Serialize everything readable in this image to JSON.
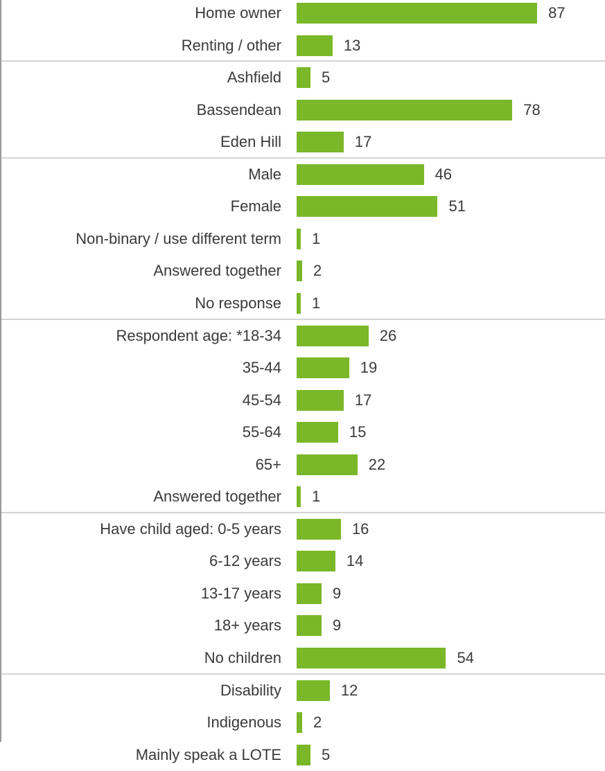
{
  "chart_data": {
    "type": "bar",
    "orientation": "horizontal",
    "bar_color": "#7ab829",
    "xlim": [
      0,
      100
    ],
    "groups": [
      {
        "rows": [
          {
            "label": "Home owner",
            "value": 87
          },
          {
            "label": "Renting / other",
            "value": 13
          }
        ]
      },
      {
        "rows": [
          {
            "label": "Ashfield",
            "value": 5
          },
          {
            "label": "Bassendean",
            "value": 78
          },
          {
            "label": "Eden Hill",
            "value": 17
          }
        ]
      },
      {
        "rows": [
          {
            "label": "Male",
            "value": 46
          },
          {
            "label": "Female",
            "value": 51
          },
          {
            "label": "Non-binary / use different term",
            "value": 1
          },
          {
            "label": "Answered together",
            "value": 2
          },
          {
            "label": "No response",
            "value": 1
          }
        ]
      },
      {
        "rows": [
          {
            "label": "Respondent age: *18-34",
            "value": 26
          },
          {
            "label": "35-44",
            "value": 19
          },
          {
            "label": "45-54",
            "value": 17
          },
          {
            "label": "55-64",
            "value": 15
          },
          {
            "label": "65+",
            "value": 22
          },
          {
            "label": "Answered together",
            "value": 1
          }
        ]
      },
      {
        "rows": [
          {
            "label": "Have child aged: 0-5 years",
            "value": 16
          },
          {
            "label": "6-12 years",
            "value": 14
          },
          {
            "label": "13-17 years",
            "value": 9
          },
          {
            "label": "18+ years",
            "value": 9
          },
          {
            "label": "No children",
            "value": 54
          }
        ]
      },
      {
        "rows": [
          {
            "label": "Disability",
            "value": 12
          },
          {
            "label": "Indigenous",
            "value": 2
          },
          {
            "label": "Mainly speak a LOTE",
            "value": 5
          }
        ]
      }
    ]
  }
}
